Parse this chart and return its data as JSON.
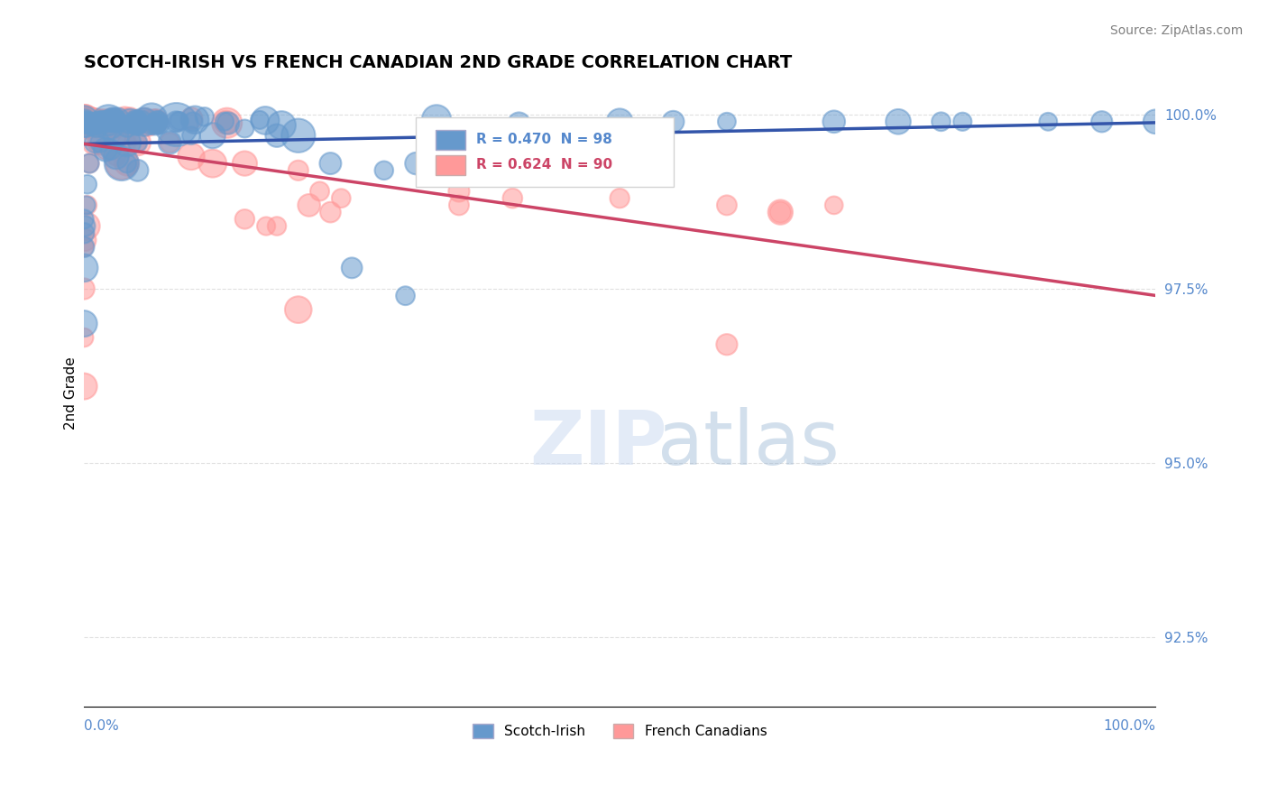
{
  "title": "SCOTCH-IRISH VS FRENCH CANADIAN 2ND GRADE CORRELATION CHART",
  "source": "Source: ZipAtlas.com",
  "ylabel": "2nd Grade",
  "xmin": 0.0,
  "xmax": 1.0,
  "ymin": 0.915,
  "ymax": 1.005,
  "yticks": [
    0.925,
    0.95,
    0.975,
    1.0
  ],
  "ytick_labels": [
    "92.5%",
    "95.0%",
    "97.5%",
    "100.0%"
  ],
  "blue_R": 0.47,
  "blue_N": 98,
  "pink_R": 0.624,
  "pink_N": 90,
  "blue_color": "#6699cc",
  "pink_color": "#ff9999",
  "blue_line_color": "#3355aa",
  "pink_line_color": "#cc4466",
  "legend_blue_label": "Scotch-Irish",
  "legend_pink_label": "French Canadians"
}
